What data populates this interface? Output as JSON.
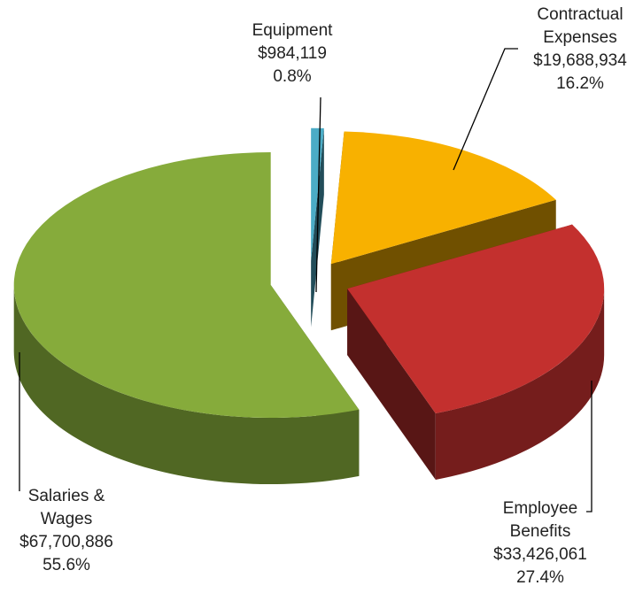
{
  "chart_data": {
    "type": "pie3d",
    "categories": [
      "Equipment",
      "Contractual Expenses",
      "Employee Benefits",
      "Salaries & Wages"
    ],
    "values": [
      984119,
      19688934,
      33426061,
      67700886
    ],
    "value_labels": [
      "$984,119",
      "$19,688,934",
      "$33,426,061",
      "$67,700,886"
    ],
    "percent_labels": [
      "0.8%",
      "16.2%",
      "27.4%",
      "55.6%"
    ],
    "colors": [
      "#4bacc6",
      "#f8b100",
      "#c3302e",
      "#86ab3b"
    ]
  }
}
